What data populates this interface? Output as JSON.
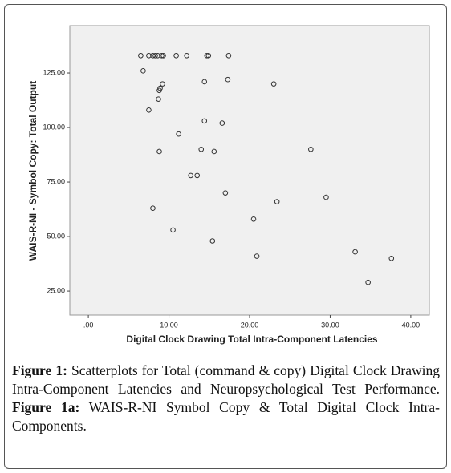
{
  "chart_data": {
    "type": "scatter",
    "xlabel": "Digital Clock Drawing  Total Intra-Component Latencies",
    "ylabel": "WAIS-R-NI - Symbol Copy: Total Output",
    "x": [
      6.5,
      7.5,
      8.0,
      8.3,
      8.6,
      9.1,
      9.3,
      10.9,
      12.2,
      14.7,
      14.9,
      17.4,
      6.8,
      8.9,
      8.8,
      9.2,
      8.7,
      14.4,
      17.3,
      23.0,
      7.5,
      14.4,
      16.6,
      11.2,
      8.8,
      14.0,
      15.6,
      27.6,
      12.7,
      13.5,
      17.0,
      29.5,
      23.4,
      8.0,
      20.5,
      10.5,
      15.4,
      20.9,
      33.1,
      37.6,
      34.7
    ],
    "values": [
      133,
      133,
      133,
      133,
      133,
      133,
      133,
      133,
      133,
      133,
      133,
      133,
      126,
      118,
      117,
      120,
      113,
      121,
      122,
      120,
      108,
      103,
      102,
      97,
      89,
      90,
      89,
      90,
      78,
      78,
      70,
      68,
      66,
      63,
      58,
      53,
      48,
      41,
      43,
      40,
      29
    ],
    "color": "#333333",
    "xlim": [
      -2.3,
      42.3
    ],
    "ylim": [
      14,
      146.7
    ],
    "xticks": [
      {
        "value": 0,
        "label": ".00"
      },
      {
        "value": 10,
        "label": "10.00"
      },
      {
        "value": 20,
        "label": "20.00"
      },
      {
        "value": 30,
        "label": "30.00"
      },
      {
        "value": 40,
        "label": "40.00"
      }
    ],
    "yticks": [
      {
        "value": 25,
        "label": "25.00"
      },
      {
        "value": 50,
        "label": "50.00"
      },
      {
        "value": 75,
        "label": "75.00"
      },
      {
        "value": 100,
        "label": "100.00"
      },
      {
        "value": 125,
        "label": "125.00"
      }
    ],
    "grid": false
  },
  "caption": {
    "label": "Figure 1:",
    "text": "Scatterplots for Total (command & copy) Digital Clock Drawing Intra-Component Latencies and Neuropsychological Test Performance.",
    "label2": "Figure 1a:",
    "text2": "WAIS-R-NI Symbol Copy & Total Digital Clock Intra-Components."
  }
}
